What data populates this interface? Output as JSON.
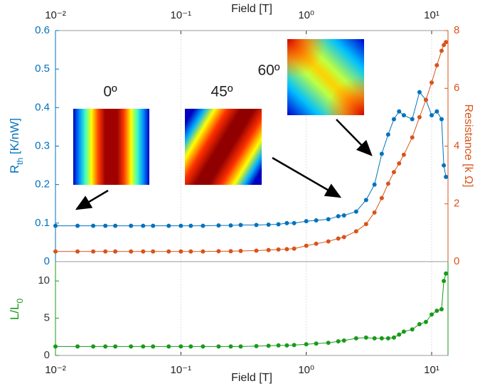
{
  "chart_data": [
    {
      "type": "line",
      "xlabel": "Field [T]",
      "xaxis_location": "top",
      "ylabel": [
        "R",
        "th",
        " [K/nW]"
      ],
      "y2label": "Resistance [k  Ω]",
      "annotations": [
        "0º",
        "45º",
        "60º"
      ],
      "xscale": "log",
      "xlim": [
        0.01,
        13.5
      ],
      "xticks": [
        {
          "value": 0.01,
          "label": "10⁻²"
        },
        {
          "value": 0.1,
          "label": "10⁻¹"
        },
        {
          "value": 1,
          "label": "10⁰"
        },
        {
          "value": 10,
          "label": "10¹"
        }
      ],
      "ylim": [
        0,
        0.6
      ],
      "yticks": [
        0,
        0.1,
        0.2,
        0.3,
        0.4,
        0.5,
        0.6
      ],
      "y2lim": [
        0,
        8
      ],
      "y2ticks": [
        0,
        2,
        4,
        6,
        8
      ],
      "grid": true,
      "x": [
        0.01,
        0.015,
        0.02,
        0.025,
        0.03,
        0.04,
        0.05,
        0.06,
        0.08,
        0.1,
        0.12,
        0.15,
        0.2,
        0.25,
        0.3,
        0.4,
        0.5,
        0.6,
        0.7,
        0.8,
        1.0,
        1.2,
        1.5,
        1.8,
        2.0,
        2.5,
        3.0,
        3.5,
        4.0,
        4.5,
        5.0,
        5.5,
        6.0,
        7.0,
        8.0,
        9.0,
        10,
        11,
        12,
        12.5,
        13
      ],
      "series": [
        {
          "color": "#0072bd",
          "axis": "y",
          "values": [
            0.093,
            0.093,
            0.093,
            0.093,
            0.093,
            0.093,
            0.093,
            0.093,
            0.093,
            0.093,
            0.093,
            0.093,
            0.094,
            0.094,
            0.095,
            0.095,
            0.096,
            0.097,
            0.1,
            0.1,
            0.105,
            0.107,
            0.11,
            0.118,
            0.12,
            0.13,
            0.16,
            0.2,
            0.28,
            0.33,
            0.37,
            0.39,
            0.38,
            0.37,
            0.44,
            0.42,
            0.38,
            0.39,
            0.37,
            0.25,
            0.22
          ]
        },
        {
          "color": "#d95319",
          "axis": "y2",
          "values": [
            0.35,
            0.35,
            0.35,
            0.35,
            0.35,
            0.35,
            0.35,
            0.35,
            0.35,
            0.35,
            0.35,
            0.35,
            0.36,
            0.36,
            0.37,
            0.38,
            0.4,
            0.42,
            0.43,
            0.45,
            0.55,
            0.62,
            0.7,
            0.8,
            0.85,
            1.05,
            1.3,
            1.7,
            2.2,
            2.7,
            3.1,
            3.4,
            3.7,
            4.3,
            5.0,
            5.6,
            6.2,
            6.8,
            7.3,
            7.5,
            7.6
          ]
        }
      ]
    },
    {
      "type": "line",
      "xlabel": "Field [T]",
      "xaxis_location": "bottom",
      "ylabel": [
        "L/L",
        "0"
      ],
      "xscale": "log",
      "xlim": [
        0.01,
        13.5
      ],
      "xticks": [
        {
          "value": 0.01,
          "label": "10⁻²"
        },
        {
          "value": 0.1,
          "label": "10⁻¹"
        },
        {
          "value": 1,
          "label": "10⁰"
        },
        {
          "value": 10,
          "label": "10¹"
        }
      ],
      "ylim": [
        0,
        12.6
      ],
      "yticks": [
        0,
        5,
        10
      ],
      "grid": true,
      "x": [
        0.01,
        0.015,
        0.02,
        0.025,
        0.03,
        0.04,
        0.05,
        0.06,
        0.08,
        0.1,
        0.12,
        0.15,
        0.2,
        0.25,
        0.3,
        0.4,
        0.5,
        0.6,
        0.7,
        0.8,
        1.0,
        1.2,
        1.5,
        1.8,
        2.0,
        2.5,
        3.0,
        3.5,
        4.0,
        4.5,
        5.0,
        5.5,
        6.0,
        7.0,
        8.0,
        9.0,
        10,
        11,
        12,
        12.5,
        13
      ],
      "series": [
        {
          "color": "#1a9a1a",
          "axis": "y",
          "values": [
            1.2,
            1.2,
            1.2,
            1.2,
            1.2,
            1.2,
            1.2,
            1.2,
            1.2,
            1.2,
            1.2,
            1.2,
            1.2,
            1.2,
            1.2,
            1.25,
            1.3,
            1.35,
            1.35,
            1.4,
            1.5,
            1.6,
            1.7,
            1.9,
            2.0,
            2.3,
            2.4,
            2.3,
            2.3,
            2.3,
            2.4,
            2.8,
            3.2,
            3.5,
            4.2,
            4.5,
            5.5,
            6.0,
            6.2,
            10.0,
            11.0
          ]
        }
      ]
    }
  ]
}
